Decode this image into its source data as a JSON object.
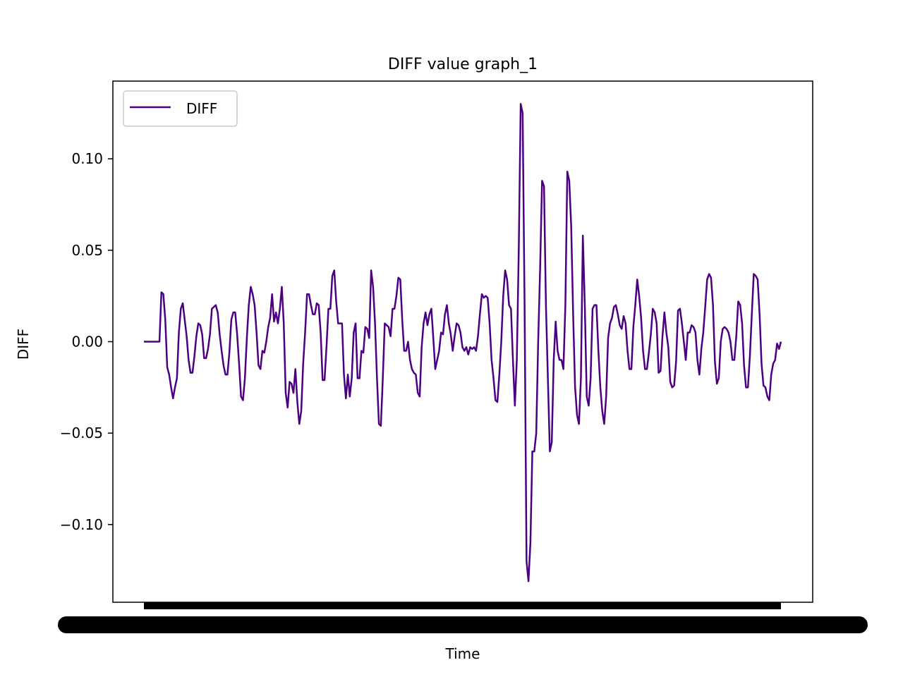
{
  "chart_data": {
    "type": "line",
    "title": "DIFF value graph_1",
    "xlabel": "Time",
    "ylabel": "DIFF",
    "ylim": [
      -0.1425,
      0.1425
    ],
    "yticks": [
      {
        "value": 0.1,
        "label": "0.10"
      },
      {
        "value": 0.05,
        "label": "0.05"
      },
      {
        "value": 0.0,
        "label": "0.00"
      },
      {
        "value": -0.05,
        "label": "−0.05"
      },
      {
        "value": -0.1,
        "label": "−0.10"
      }
    ],
    "x_ticks_note": "x tick labels are dense, overlapping and unreadable",
    "grid": false,
    "legend": {
      "position": "top-left",
      "entries": [
        "DIFF"
      ]
    },
    "series": [
      {
        "name": "DIFF",
        "color": "#4b0082",
        "values": [
          0.0,
          0.0,
          0.0,
          0.0,
          0.0,
          0.0,
          0.0,
          0.0,
          0.0,
          0.027,
          0.026,
          0.012,
          -0.014,
          -0.018,
          -0.025,
          -0.031,
          -0.025,
          -0.02,
          0.005,
          0.018,
          0.021,
          0.012,
          0.003,
          -0.01,
          -0.017,
          -0.017,
          -0.008,
          0.003,
          0.01,
          0.009,
          0.004,
          -0.009,
          -0.009,
          -0.004,
          0.004,
          0.018,
          0.019,
          0.02,
          0.016,
          0.004,
          -0.005,
          -0.013,
          -0.018,
          -0.018,
          -0.006,
          0.012,
          0.016,
          0.016,
          0.004,
          -0.012,
          -0.03,
          -0.032,
          -0.02,
          0.002,
          0.02,
          0.03,
          0.026,
          0.02,
          0.005,
          -0.013,
          -0.015,
          -0.005,
          -0.006,
          0.0,
          0.008,
          0.013,
          0.026,
          0.011,
          0.016,
          0.01,
          0.018,
          0.03,
          0.01,
          -0.028,
          -0.036,
          -0.022,
          -0.023,
          -0.028,
          -0.015,
          -0.033,
          -0.045,
          -0.038,
          -0.012,
          0.005,
          0.026,
          0.026,
          0.02,
          0.015,
          0.015,
          0.021,
          0.02,
          0.005,
          -0.021,
          -0.021,
          -0.003,
          0.018,
          0.018,
          0.036,
          0.039,
          0.022,
          0.01,
          0.01,
          0.01,
          -0.018,
          -0.031,
          -0.018,
          -0.03,
          -0.02,
          0.005,
          0.01,
          -0.02,
          -0.02,
          -0.005,
          -0.006,
          0.008,
          0.007,
          0.002,
          0.039,
          0.03,
          0.01,
          -0.02,
          -0.045,
          -0.046,
          -0.02,
          0.01,
          0.009,
          0.008,
          0.003,
          0.018,
          0.018,
          0.025,
          0.035,
          0.034,
          0.012,
          -0.005,
          -0.005,
          0.0,
          -0.01,
          -0.015,
          -0.017,
          -0.018,
          -0.028,
          -0.03,
          -0.003,
          0.01,
          0.016,
          0.009,
          0.015,
          0.018,
          0.002,
          -0.015,
          -0.01,
          -0.005,
          0.005,
          0.004,
          0.015,
          0.02,
          0.01,
          0.004,
          -0.005,
          0.003,
          0.01,
          0.009,
          0.005,
          -0.003,
          -0.005,
          -0.003,
          -0.007,
          -0.003,
          -0.004,
          -0.003,
          -0.005,
          0.003,
          0.015,
          0.026,
          0.024,
          0.025,
          0.024,
          0.01,
          -0.01,
          -0.02,
          -0.032,
          -0.033,
          -0.018,
          0.0,
          0.025,
          0.039,
          0.034,
          0.02,
          0.018,
          -0.01,
          -0.035,
          -0.01,
          0.05,
          0.13,
          0.125,
          0.02,
          -0.12,
          -0.131,
          -0.11,
          -0.06,
          -0.06,
          -0.05,
          0.0,
          0.04,
          0.088,
          0.085,
          0.02,
          -0.02,
          -0.06,
          -0.055,
          -0.01,
          0.011,
          -0.005,
          -0.01,
          -0.01,
          -0.015,
          0.02,
          0.093,
          0.088,
          0.063,
          0.015,
          -0.025,
          -0.04,
          -0.045,
          -0.02,
          0.058,
          0.02,
          -0.03,
          -0.035,
          -0.02,
          0.018,
          0.02,
          0.02,
          -0.005,
          -0.025,
          -0.038,
          -0.045,
          -0.03,
          0.002,
          0.01,
          0.013,
          0.019,
          0.02,
          0.015,
          0.009,
          0.007,
          0.014,
          0.01,
          -0.005,
          -0.015,
          -0.015,
          0.008,
          0.02,
          0.034,
          0.025,
          0.013,
          -0.005,
          -0.015,
          -0.015,
          -0.006,
          0.004,
          0.018,
          0.016,
          0.01,
          -0.017,
          -0.016,
          0.003,
          0.016,
          0.005,
          -0.003,
          -0.022,
          -0.025,
          -0.024,
          -0.011,
          0.017,
          0.018,
          0.01,
          0.0,
          -0.01,
          0.005,
          0.005,
          0.009,
          0.008,
          0.005,
          -0.01,
          -0.018,
          -0.004,
          0.005,
          0.019,
          0.034,
          0.037,
          0.035,
          0.02,
          -0.011,
          -0.023,
          -0.02,
          0.0,
          0.007,
          0.008,
          0.007,
          0.005,
          0.0,
          -0.01,
          -0.01,
          0.003,
          0.022,
          0.02,
          0.01,
          -0.013,
          -0.025,
          -0.025,
          -0.008,
          0.015,
          0.037,
          0.036,
          0.034,
          0.015,
          -0.012,
          -0.024,
          -0.025,
          -0.03,
          -0.032,
          -0.018,
          -0.012,
          -0.01,
          -0.001,
          -0.004,
          0.0
        ]
      }
    ]
  }
}
